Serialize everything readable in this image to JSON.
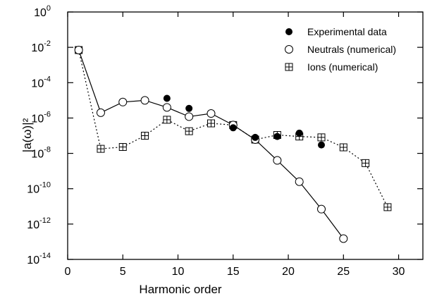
{
  "chart_data": {
    "type": "scatter",
    "xlabel": "Harmonic order",
    "ylabel": "|a(ω)|²",
    "log_y": true,
    "xlim": [
      0,
      32.2
    ],
    "ylim": [
      1e-14,
      1
    ],
    "xticks": [
      0,
      5,
      10,
      15,
      20,
      25,
      30
    ],
    "yticks": [
      {
        "value": 1,
        "label": "10",
        "exponent": "0"
      },
      {
        "value": 0.01,
        "label": "10",
        "exponent": "-2"
      },
      {
        "value": 0.0001,
        "label": "10",
        "exponent": "-4"
      },
      {
        "value": 1e-06,
        "label": "10",
        "exponent": "-6"
      },
      {
        "value": 1e-08,
        "label": "10",
        "exponent": "-8"
      },
      {
        "value": 1e-10,
        "label": "10",
        "exponent": "-10"
      },
      {
        "value": 1e-12,
        "label": "10",
        "exponent": "-12"
      },
      {
        "value": 1e-14,
        "label": "10",
        "exponent": "-14"
      }
    ],
    "legend": "upper right",
    "series": [
      {
        "name": "Experimental data",
        "marker": "filled-circle",
        "line": "none",
        "color": "#000000",
        "x": [
          9,
          11,
          15,
          17,
          19,
          21,
          23
        ],
        "values": [
          1.3e-05,
          3.5e-06,
          2.8e-07,
          8e-08,
          9e-08,
          1.4e-07,
          3e-08
        ]
      },
      {
        "name": "Neutrals (numerical)",
        "marker": "open-circle",
        "line": "solid",
        "color": "#000000",
        "x": [
          1,
          3,
          5,
          7,
          9,
          11,
          13,
          15,
          17,
          19,
          21,
          23,
          25
        ],
        "values": [
          0.007,
          2e-06,
          8e-06,
          1e-05,
          4e-06,
          1.2e-06,
          1.8e-06,
          4e-07,
          6e-08,
          4e-09,
          2.5e-10,
          7e-12,
          1.5e-13
        ]
      },
      {
        "name": "Ions  (numerical)",
        "marker": "boxed-plus",
        "line": "dotted",
        "color": "#000000",
        "x": [
          1,
          3,
          5,
          7,
          9,
          11,
          13,
          15,
          17,
          19,
          21,
          23,
          25,
          27,
          29
        ],
        "values": [
          0.007,
          1.8e-08,
          2.3e-08,
          1e-07,
          8e-07,
          1.8e-07,
          5e-07,
          4e-07,
          6e-08,
          1.1e-07,
          9e-08,
          8e-08,
          2.2e-08,
          2.8e-09,
          9e-12
        ]
      }
    ]
  }
}
